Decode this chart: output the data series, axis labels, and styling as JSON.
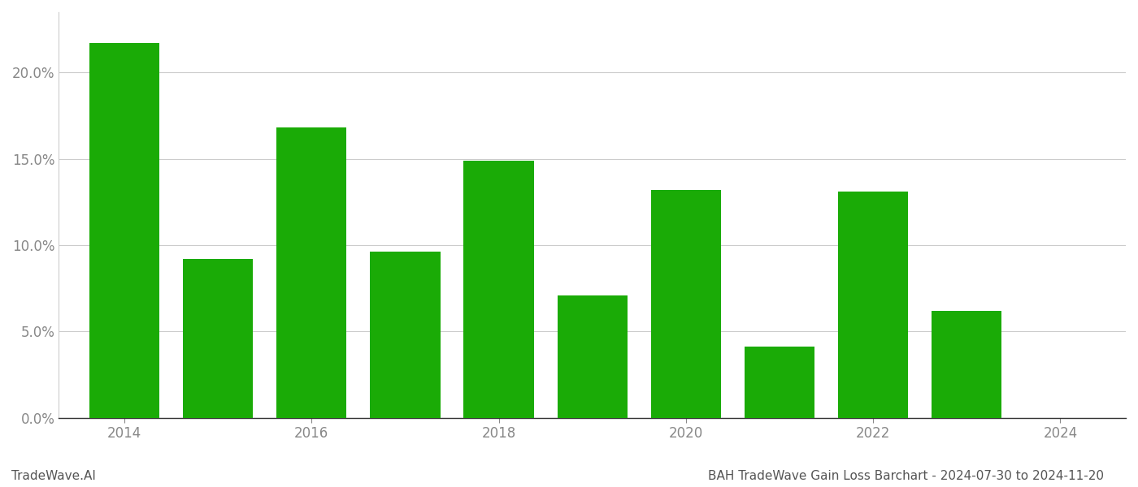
{
  "years": [
    2014,
    2015,
    2016,
    2017,
    2018,
    2019,
    2020,
    2021,
    2022,
    2023
  ],
  "values": [
    0.217,
    0.092,
    0.168,
    0.096,
    0.149,
    0.071,
    0.132,
    0.041,
    0.131,
    0.062
  ],
  "bar_color": "#1aab06",
  "title": "BAH TradeWave Gain Loss Barchart - 2024-07-30 to 2024-11-20",
  "watermark": "TradeWave.AI",
  "ylim": [
    0,
    0.235
  ],
  "yticks": [
    0.0,
    0.05,
    0.1,
    0.15,
    0.2
  ],
  "xlim": [
    2013.3,
    2024.7
  ],
  "xticks": [
    2014,
    2016,
    2018,
    2020,
    2022,
    2024
  ],
  "background_color": "#ffffff",
  "grid_color": "#cccccc",
  "title_fontsize": 11,
  "watermark_fontsize": 11,
  "tick_label_color": "#888888",
  "bar_width": 0.75
}
